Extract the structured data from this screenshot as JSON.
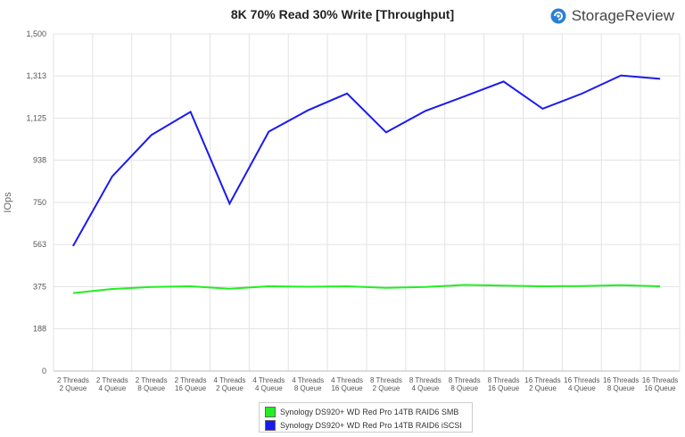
{
  "header": {
    "title": "8K 70% Read 30% Write [Throughput]",
    "brand": "StorageReview"
  },
  "chart_data": {
    "type": "line",
    "title": "8K 70% Read 30% Write [Throughput]",
    "ylabel": "IOps",
    "xlabel": "",
    "ylim": [
      0,
      1500
    ],
    "yticks": [
      "0",
      "188",
      "375",
      "563",
      "750",
      "938",
      "1,125",
      "1,313",
      "1,500"
    ],
    "ytick_values": [
      0,
      188,
      375,
      563,
      750,
      938,
      1125,
      1313,
      1500
    ],
    "grid": true,
    "legend_position": "bottom",
    "categories": [
      [
        "2 Threads",
        "2 Queue"
      ],
      [
        "2 Threads",
        "4 Queue"
      ],
      [
        "2 Threads",
        "8 Queue"
      ],
      [
        "2 Threads",
        "16 Queue"
      ],
      [
        "4 Threads",
        "2 Queue"
      ],
      [
        "4 Threads",
        "4 Queue"
      ],
      [
        "4 Threads",
        "8 Queue"
      ],
      [
        "4 Threads",
        "16 Queue"
      ],
      [
        "8 Threads",
        "2 Queue"
      ],
      [
        "8 Threads",
        "4 Queue"
      ],
      [
        "8 Threads",
        "8 Queue"
      ],
      [
        "8 Threads",
        "16 Queue"
      ],
      [
        "16 Threads",
        "2 Queue"
      ],
      [
        "16 Threads",
        "4 Queue"
      ],
      [
        "16 Threads",
        "8 Queue"
      ],
      [
        "16 Threads",
        "16 Queue"
      ]
    ],
    "series": [
      {
        "name": "Synology DS920+ WD Red Pro 14TB RAID6 SMB",
        "color": "#22ee22",
        "values": [
          347,
          365,
          374,
          377,
          366,
          377,
          375,
          377,
          370,
          374,
          383,
          380,
          377,
          378,
          382,
          377
        ]
      },
      {
        "name": "Synology DS920+ WD Red Pro 14TB RAID6 iSCSI",
        "color": "#1a1aee",
        "values": [
          556,
          866,
          1050,
          1153,
          745,
          1065,
          1160,
          1235,
          1062,
          1157,
          1222,
          1288,
          1167,
          1234,
          1315,
          1300
        ]
      }
    ]
  }
}
